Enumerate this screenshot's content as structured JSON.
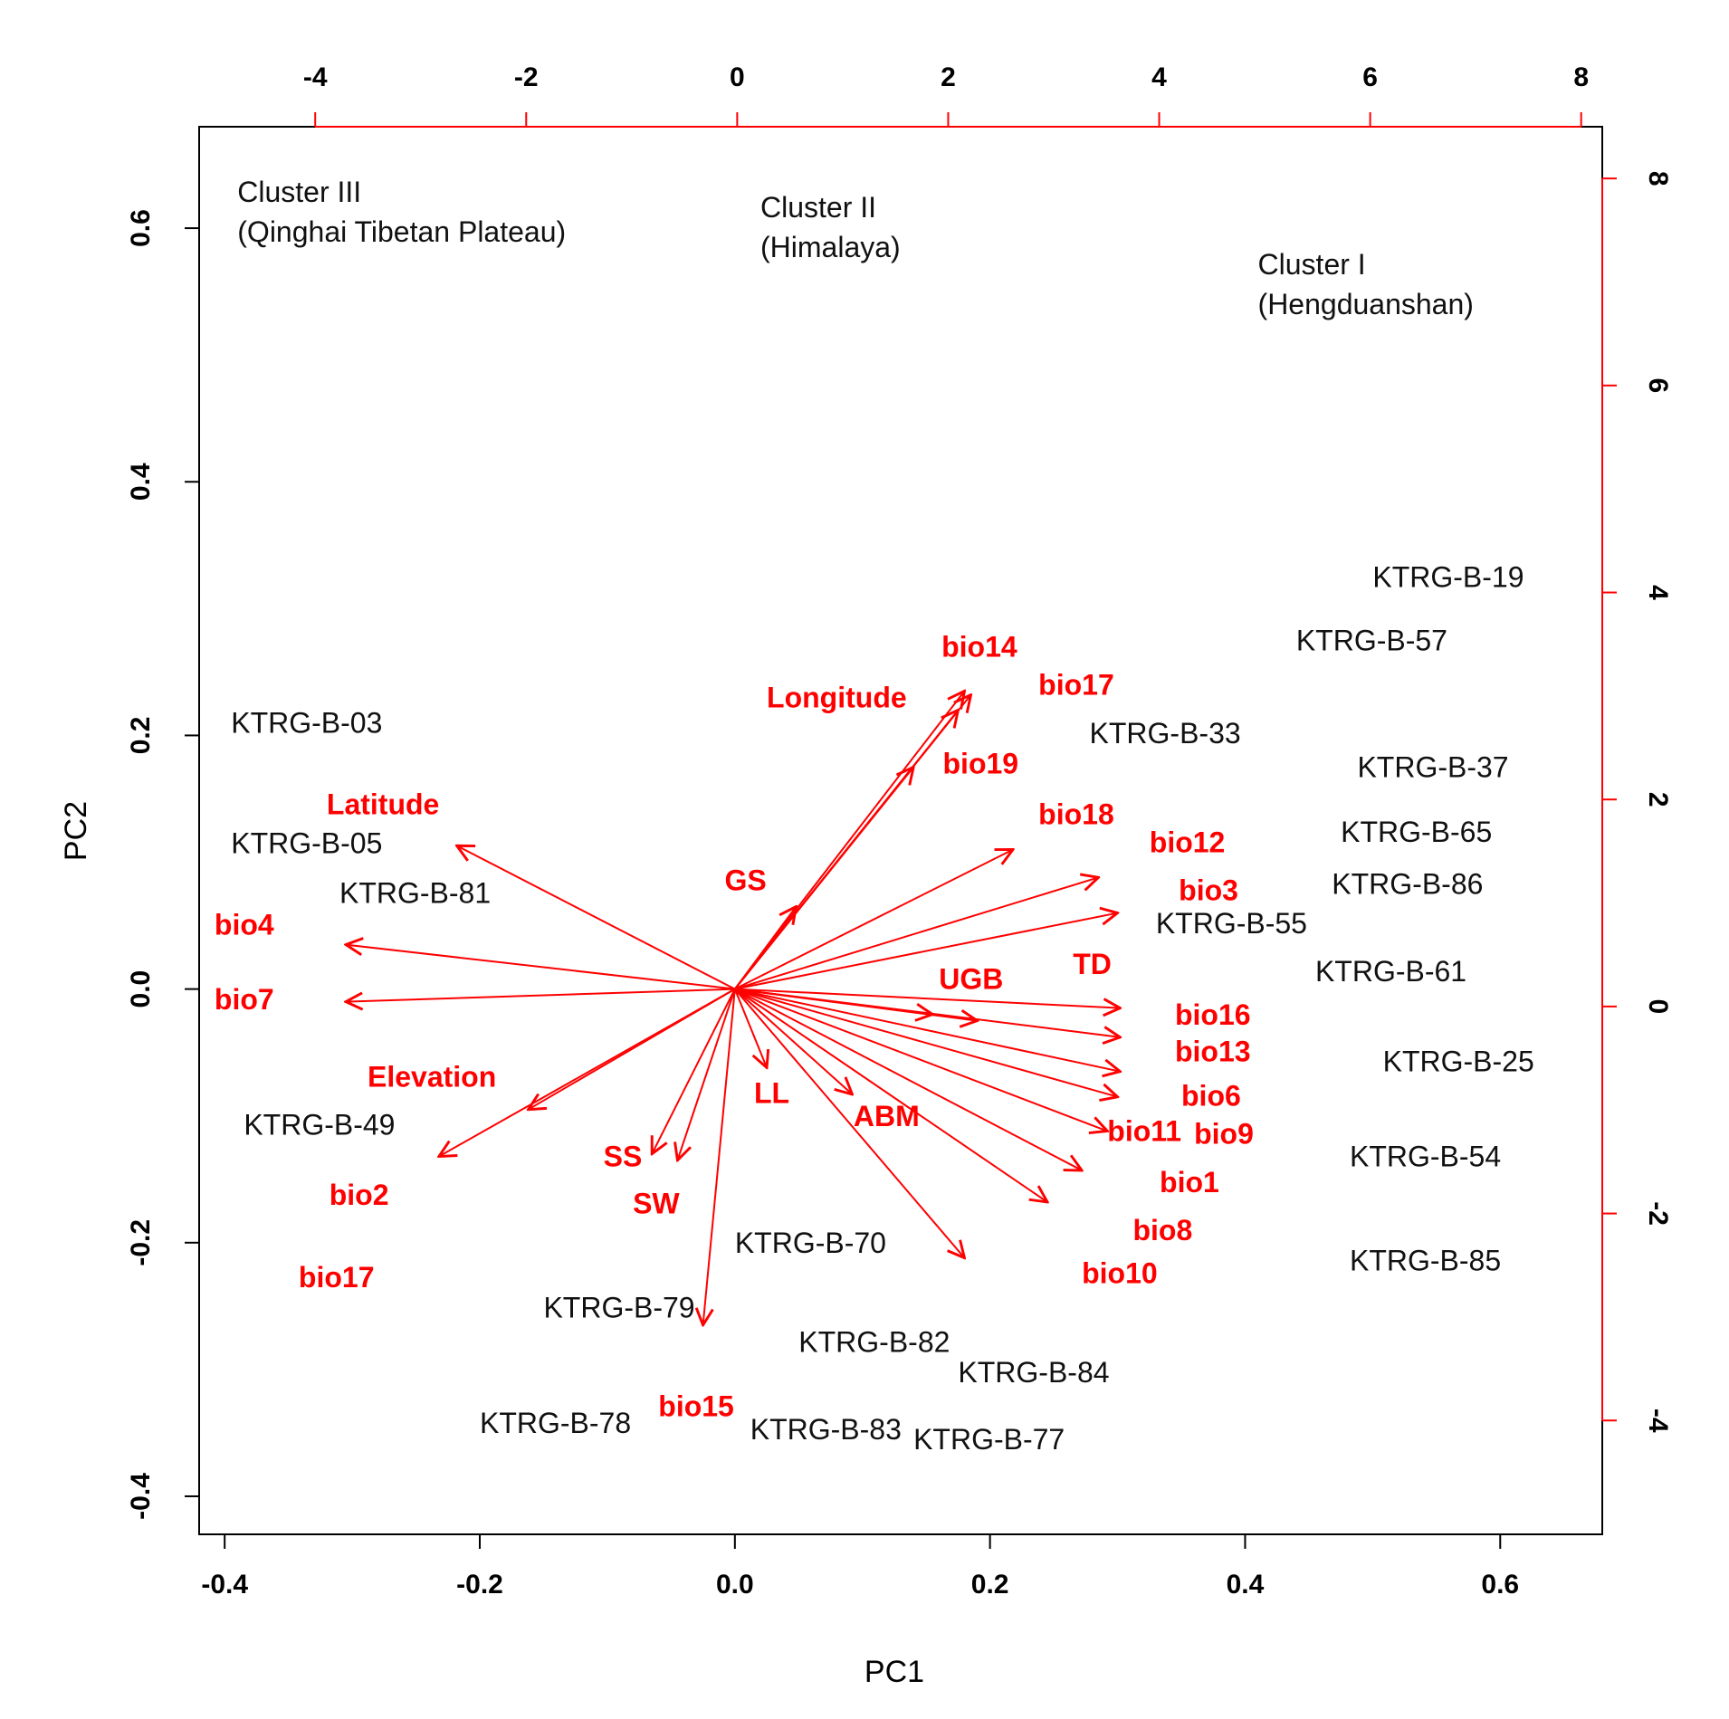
{
  "chart_data": {
    "type": "scatter",
    "subtype": "pca-biplot",
    "xlabel": "PC1",
    "ylabel": "PC2",
    "xlim": [
      -0.42,
      0.68
    ],
    "ylim": [
      -0.43,
      0.68
    ],
    "x_ticks": [
      "-0.4",
      "-0.2",
      "0.0",
      "0.2",
      "0.4",
      "0.6"
    ],
    "y_ticks": [
      "-0.4",
      "-0.2",
      "0.0",
      "0.2",
      "0.4",
      "0.6"
    ],
    "top_axis": {
      "lim": [
        -5.1,
        8.2
      ],
      "ticks": [
        "-4",
        "-2",
        "0",
        "2",
        "4",
        "6",
        "8"
      ],
      "color": "#ff0000"
    },
    "right_axis": {
      "lim": [
        -5.1,
        8.5
      ],
      "ticks": [
        "-4",
        "-2",
        "0",
        "2",
        "4",
        "6",
        "8"
      ],
      "color": "#ff0000"
    },
    "colors": {
      "samples": "#111111",
      "loadings": "#ff0000",
      "axes": "#000000"
    },
    "clusters": [
      {
        "name": "Cluster III",
        "region": "(Qinghai Tibetan Plateau)",
        "x": -0.39,
        "y": 0.605
      },
      {
        "name": "Cluster II",
        "region": "(Himalaya)",
        "x": 0.02,
        "y": 0.593
      },
      {
        "name": "Cluster I",
        "region": "(Hengduanshan)",
        "x": 0.41,
        "y": 0.548
      }
    ],
    "samples": [
      {
        "label": "KTRG-B-03",
        "x": -0.395,
        "y": 0.202
      },
      {
        "label": "KTRG-B-05",
        "x": -0.395,
        "y": 0.107
      },
      {
        "label": "KTRG-B-81",
        "x": -0.31,
        "y": 0.068
      },
      {
        "label": "KTRG-B-49",
        "x": -0.385,
        "y": -0.115
      },
      {
        "label": "KTRG-B-79",
        "x": -0.15,
        "y": -0.259
      },
      {
        "label": "KTRG-B-78",
        "x": -0.2,
        "y": -0.35
      },
      {
        "label": "KTRG-B-70",
        "x": 0.0,
        "y": -0.208
      },
      {
        "label": "KTRG-B-82",
        "x": 0.05,
        "y": -0.286
      },
      {
        "label": "KTRG-B-83",
        "x": 0.012,
        "y": -0.355
      },
      {
        "label": "KTRG-B-84",
        "x": 0.175,
        "y": -0.31
      },
      {
        "label": "KTRG-B-77",
        "x": 0.14,
        "y": -0.363
      },
      {
        "label": "KTRG-B-33",
        "x": 0.278,
        "y": 0.194
      },
      {
        "label": "KTRG-B-55",
        "x": 0.33,
        "y": 0.044
      },
      {
        "label": "KTRG-B-19",
        "x": 0.5,
        "y": 0.317
      },
      {
        "label": "KTRG-B-57",
        "x": 0.44,
        "y": 0.267
      },
      {
        "label": "KTRG-B-37",
        "x": 0.488,
        "y": 0.167
      },
      {
        "label": "KTRG-B-65",
        "x": 0.475,
        "y": 0.116
      },
      {
        "label": "KTRG-B-86",
        "x": 0.468,
        "y": 0.075
      },
      {
        "label": "KTRG-B-61",
        "x": 0.455,
        "y": 0.006
      },
      {
        "label": "KTRG-B-25",
        "x": 0.508,
        "y": -0.065
      },
      {
        "label": "KTRG-B-54",
        "x": 0.482,
        "y": -0.14
      },
      {
        "label": "KTRG-B-85",
        "x": 0.482,
        "y": -0.222
      }
    ],
    "loadings": [
      {
        "label": "bio14",
        "x": 0.18,
        "y": 0.235,
        "label_x": 0.162,
        "label_y": 0.262
      },
      {
        "label": "Longitude",
        "x": 0.175,
        "y": 0.22,
        "label_x": 0.025,
        "label_y": 0.222
      },
      {
        "label": "bio17",
        "x": 0.185,
        "y": 0.232,
        "label_x": 0.238,
        "label_y": 0.232
      },
      {
        "label": "bio19",
        "x": 0.14,
        "y": 0.175,
        "label_x": 0.163,
        "label_y": 0.17
      },
      {
        "label": "GS",
        "x": 0.048,
        "y": 0.065,
        "label_x": -0.008,
        "label_y": 0.078
      },
      {
        "label": "bio18",
        "x": 0.218,
        "y": 0.11,
        "label_x": 0.238,
        "label_y": 0.13
      },
      {
        "label": "bio12",
        "x": 0.285,
        "y": 0.088,
        "label_x": 0.325,
        "label_y": 0.108
      },
      {
        "label": "bio3",
        "x": 0.3,
        "y": 0.06,
        "label_x": 0.348,
        "label_y": 0.07
      },
      {
        "label": "UGB",
        "x": 0.19,
        "y": -0.025,
        "label_x": 0.16,
        "label_y": 0.0
      },
      {
        "label": "TD",
        "x": 0.155,
        "y": -0.02,
        "label_x": 0.265,
        "label_y": 0.012
      },
      {
        "label": "bio16",
        "x": 0.302,
        "y": -0.015,
        "label_x": 0.345,
        "label_y": -0.028
      },
      {
        "label": "bio13",
        "x": 0.302,
        "y": -0.038,
        "label_x": 0.345,
        "label_y": -0.057
      },
      {
        "label": "bio6",
        "x": 0.302,
        "y": -0.065,
        "label_x": 0.35,
        "label_y": -0.092
      },
      {
        "label": "bio11",
        "x": 0.292,
        "y": -0.112,
        "label_x": 0.292,
        "label_y": -0.12
      },
      {
        "label": "bio9",
        "x": 0.3,
        "y": -0.085,
        "label_x": 0.36,
        "label_y": -0.122
      },
      {
        "label": "bio1",
        "x": 0.272,
        "y": -0.143,
        "label_x": 0.333,
        "label_y": -0.16
      },
      {
        "label": "bio8",
        "x": 0.245,
        "y": -0.168,
        "label_x": 0.312,
        "label_y": -0.198
      },
      {
        "label": "bio10",
        "x": 0.18,
        "y": -0.212,
        "label_x": 0.272,
        "label_y": -0.232
      },
      {
        "label": "ABM",
        "x": 0.092,
        "y": -0.083,
        "label_x": 0.093,
        "label_y": -0.108
      },
      {
        "label": "LL",
        "x": 0.025,
        "y": -0.062,
        "label_x": 0.015,
        "label_y": -0.09
      },
      {
        "label": "SS",
        "x": -0.065,
        "y": -0.13,
        "label_x": -0.103,
        "label_y": -0.14
      },
      {
        "label": "SW",
        "x": -0.045,
        "y": -0.135,
        "label_x": -0.08,
        "label_y": -0.177
      },
      {
        "label": "bio15",
        "x": -0.025,
        "y": -0.265,
        "label_x": -0.06,
        "label_y": -0.337
      },
      {
        "label": "Latitude",
        "x": -0.218,
        "y": 0.113,
        "label_x": -0.32,
        "label_y": 0.138
      },
      {
        "label": "bio4",
        "x": -0.305,
        "y": 0.035,
        "label_x": -0.408,
        "label_y": 0.043
      },
      {
        "label": "bio7",
        "x": -0.305,
        "y": -0.01,
        "label_x": -0.408,
        "label_y": -0.016
      },
      {
        "label": "Elevation",
        "x": -0.162,
        "y": -0.095,
        "label_x": -0.288,
        "label_y": -0.077
      },
      {
        "label": "bio2",
        "x": -0.232,
        "y": -0.132,
        "label_x": -0.318,
        "label_y": -0.17
      },
      {
        "label": "bio17",
        "x": -0.255,
        "y": -0.23,
        "label_x": -0.342,
        "label_y": -0.235,
        "arrow": false,
        "light": true
      }
    ]
  }
}
